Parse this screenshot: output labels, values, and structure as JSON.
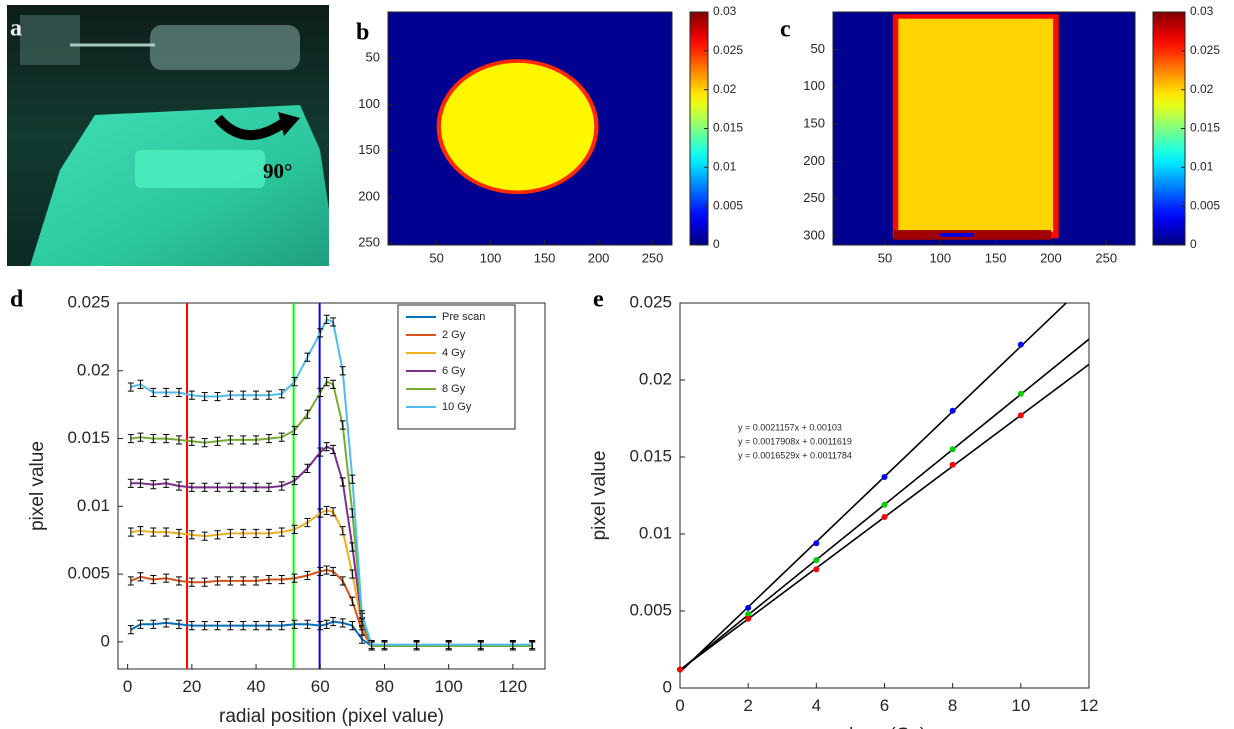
{
  "panel_a": {
    "label": "a",
    "annotation": "90°"
  },
  "chart_data": [
    {
      "type": "heatmap",
      "label": "b",
      "xlim": [
        5,
        268
      ],
      "xticks": [
        50,
        100,
        150,
        200,
        250
      ],
      "ylim": [
        252,
        0
      ],
      "yticks": [
        50,
        100,
        150,
        200,
        250
      ],
      "clim": [
        0,
        0.03
      ],
      "cticks": [
        0,
        0.005,
        0.01,
        0.015,
        0.02,
        0.025,
        0.03
      ],
      "background_value": 0.0005,
      "regions": [
        {
          "shape": "ellipse",
          "cx": 125,
          "cy": 124,
          "rx": 75,
          "ry": 73,
          "value": 0.025
        },
        {
          "shape": "ellipse",
          "cx": 125,
          "cy": 124,
          "rx": 71,
          "ry": 69,
          "value": 0.019
        }
      ]
    },
    {
      "type": "heatmap",
      "label": "c",
      "xlim": [
        3,
        276
      ],
      "xticks": [
        50,
        100,
        150,
        200,
        250
      ],
      "ylim": [
        312,
        0
      ],
      "yticks": [
        50,
        100,
        150,
        200,
        250,
        300
      ],
      "clim": [
        0,
        0.03
      ],
      "cticks": [
        0,
        0.005,
        0.01,
        0.015,
        0.02,
        0.025,
        0.03
      ],
      "background_value": 0.0005,
      "regions": [
        {
          "shape": "rect",
          "x0": 57,
          "x1": 207,
          "y0": 3,
          "y1": 303,
          "value": 0.026
        },
        {
          "shape": "rect",
          "x0": 62,
          "x1": 202,
          "y0": 9,
          "y1": 294,
          "value": 0.02
        },
        {
          "shape": "rect",
          "x0": 58,
          "x1": 200,
          "y0": 292,
          "y1": 305,
          "value": 0.029
        },
        {
          "shape": "rect",
          "x0": 100,
          "x1": 130,
          "y0": 296,
          "y1": 301,
          "value": 0.003
        }
      ]
    },
    {
      "type": "line",
      "label": "d",
      "xlabel": "radial position (pixel value)",
      "ylabel": "pixel value",
      "xlim": [
        -3,
        130
      ],
      "xticks": [
        0,
        20,
        40,
        60,
        80,
        100,
        120
      ],
      "ylim": [
        -0.002,
        0.025
      ],
      "yticks": [
        0,
        0.005,
        0.01,
        0.015,
        0.02,
        0.025
      ],
      "legend": "northeast",
      "vlines": [
        {
          "x": 18.5,
          "color": "#ff0000"
        },
        {
          "x": 51.7,
          "color": "#00ff00"
        },
        {
          "x": 59.8,
          "color": "#0000ff"
        }
      ],
      "x": [
        1,
        4,
        8,
        12,
        16,
        20,
        24,
        28,
        32,
        36,
        40,
        44,
        48,
        52,
        56,
        60,
        62,
        64,
        67,
        70,
        73,
        76,
        80,
        90,
        100,
        110,
        120,
        126
      ],
      "series": [
        {
          "name": "Pre scan",
          "color": "#0072bd",
          "error": 0.0003,
          "values": [
            0.0009,
            0.0013,
            0.0013,
            0.0014,
            0.0013,
            0.0012,
            0.0012,
            0.0012,
            0.0012,
            0.0012,
            0.0012,
            0.0012,
            0.0012,
            0.0013,
            0.0013,
            0.0012,
            0.0013,
            0.0015,
            0.0014,
            0.0012,
            0.0002,
            -0.0003,
            -0.0003,
            -0.0003,
            -0.0003,
            -0.0003,
            -0.0003,
            -0.0003
          ]
        },
        {
          "name": "2 Gy",
          "color": "#d95319",
          "error": 0.0003,
          "values": [
            0.0045,
            0.0048,
            0.0046,
            0.0047,
            0.0045,
            0.0044,
            0.0044,
            0.0045,
            0.0045,
            0.0045,
            0.0045,
            0.0046,
            0.0046,
            0.0047,
            0.0049,
            0.0052,
            0.0053,
            0.0052,
            0.0045,
            0.003,
            0.0008,
            -0.0003,
            -0.0003,
            -0.0003,
            -0.0003,
            -0.0003,
            -0.0003,
            -0.0003
          ]
        },
        {
          "name": "4 Gy",
          "color": "#edb120",
          "error": 0.0003,
          "values": [
            0.0081,
            0.0082,
            0.0081,
            0.0081,
            0.008,
            0.0079,
            0.0078,
            0.0079,
            0.008,
            0.008,
            0.008,
            0.008,
            0.0081,
            0.0083,
            0.0088,
            0.0095,
            0.0097,
            0.0096,
            0.0082,
            0.005,
            0.0012,
            -0.0003,
            -0.0003,
            -0.0003,
            -0.0003,
            -0.0003,
            -0.0003,
            -0.0003
          ]
        },
        {
          "name": "6 Gy",
          "color": "#7e2f8e",
          "error": 0.0003,
          "values": [
            0.0117,
            0.0117,
            0.0116,
            0.0117,
            0.0115,
            0.0114,
            0.0114,
            0.0114,
            0.0114,
            0.0114,
            0.0114,
            0.0114,
            0.0115,
            0.0119,
            0.0128,
            0.014,
            0.0144,
            0.0142,
            0.0118,
            0.007,
            0.0015,
            -0.0003,
            -0.0003,
            -0.0003,
            -0.0003,
            -0.0003,
            -0.0003,
            -0.0003
          ]
        },
        {
          "name": "8 Gy",
          "color": "#77ac30",
          "error": 0.0003,
          "values": [
            0.015,
            0.0151,
            0.015,
            0.015,
            0.0149,
            0.0148,
            0.0147,
            0.0148,
            0.0149,
            0.0149,
            0.0149,
            0.015,
            0.0151,
            0.0156,
            0.0168,
            0.0184,
            0.0192,
            0.019,
            0.016,
            0.0095,
            0.0018,
            -0.0003,
            -0.0003,
            -0.0003,
            -0.0003,
            -0.0003,
            -0.0003,
            -0.0003
          ]
        },
        {
          "name": "10 Gy",
          "color": "#4dbeee",
          "error": 0.0003,
          "values": [
            0.0188,
            0.019,
            0.0184,
            0.0184,
            0.0184,
            0.0182,
            0.0181,
            0.0181,
            0.0182,
            0.0182,
            0.0182,
            0.0182,
            0.0183,
            0.0192,
            0.021,
            0.0228,
            0.0238,
            0.0236,
            0.02,
            0.012,
            0.002,
            -0.0002,
            -0.0002,
            -0.0002,
            -0.0002,
            -0.0002,
            -0.0002,
            -0.0002
          ]
        }
      ]
    },
    {
      "type": "scatter",
      "label": "e",
      "xlabel": "dose (Gy)",
      "ylabel": "pixel value",
      "xlim": [
        0,
        12
      ],
      "xticks": [
        0,
        2,
        4,
        6,
        8,
        10,
        12
      ],
      "ylim": [
        0,
        0.025
      ],
      "yticks": [
        0,
        0.005,
        0.01,
        0.015,
        0.02,
        0.025
      ],
      "x": [
        0,
        2,
        4,
        6,
        8,
        10
      ],
      "series": [
        {
          "color": "#0000ff",
          "values": [
            0.0012,
            0.0052,
            0.0094,
            0.0137,
            0.018,
            0.0223
          ]
        },
        {
          "color": "#00cc00",
          "values": [
            0.0012,
            0.0048,
            0.0083,
            0.0119,
            0.0155,
            0.0191
          ]
        },
        {
          "color": "#ff0000",
          "values": [
            0.0012,
            0.0045,
            0.0077,
            0.0111,
            0.0145,
            0.0177
          ]
        }
      ],
      "fit_color": "#000000",
      "fits": [
        {
          "label": "y = 0.0021157x + 0.00103",
          "slope": 0.0021157,
          "intercept": 0.00103
        },
        {
          "label": "y = 0.0017908x + 0.0011619",
          "slope": 0.0017908,
          "intercept": 0.0011619
        },
        {
          "label": "y = 0.0016529x + 0.0011784",
          "slope": 0.0016529,
          "intercept": 0.0011784
        }
      ]
    }
  ]
}
